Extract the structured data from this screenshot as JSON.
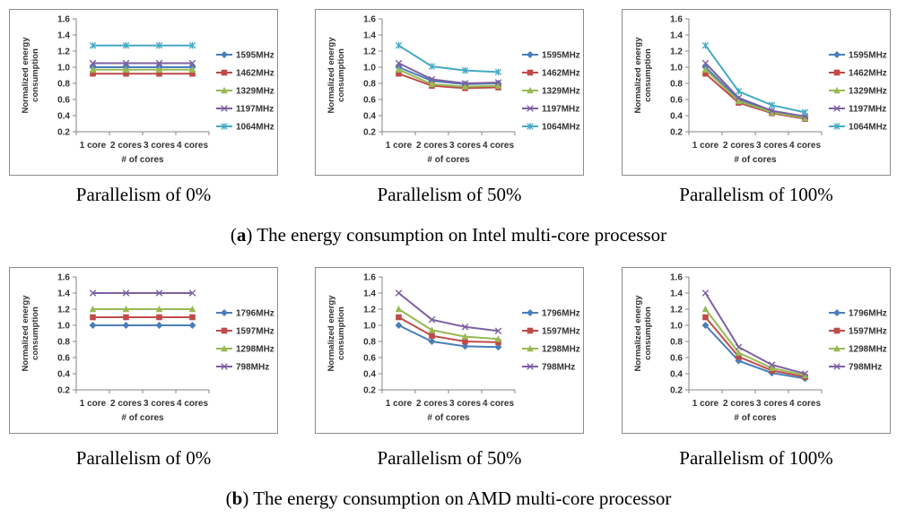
{
  "rows": [
    {
      "label": "a",
      "caption": "The energy consumption on Intel multi-core processor",
      "subcaptions": [
        "Parallelism of 0%",
        "Parallelism of 50%",
        "Parallelism of 100%"
      ]
    },
    {
      "label": "b",
      "caption": "The energy consumption on AMD multi-core processor",
      "subcaptions": [
        "Parallelism of 0%",
        "Parallelism of 50%",
        "Parallelism of 100%"
      ]
    }
  ],
  "chart_data": [
    {
      "type": "line",
      "title": "",
      "xlabel": "# of cores",
      "ylabel": "Normalized energy consumption",
      "categories": [
        "1 core",
        "2 cores",
        "3 cores",
        "4 cores"
      ],
      "ylim": [
        0.2,
        1.6
      ],
      "yticks": [
        "0.2",
        "0.4",
        "0.6",
        "0.8",
        "1.0",
        "1.2",
        "1.4",
        "1.6"
      ],
      "series": [
        {
          "name": "1595MHz",
          "color": "#4a7ebb",
          "marker": "diamond",
          "values": [
            1.0,
            1.0,
            1.0,
            1.0
          ]
        },
        {
          "name": "1462MHz",
          "color": "#be4b48",
          "marker": "square",
          "values": [
            0.92,
            0.92,
            0.92,
            0.92
          ]
        },
        {
          "name": "1329MHz",
          "color": "#98b954",
          "marker": "triangle",
          "values": [
            0.97,
            0.97,
            0.97,
            0.97
          ]
        },
        {
          "name": "1197MHz",
          "color": "#7d60a0",
          "marker": "x",
          "values": [
            1.05,
            1.05,
            1.05,
            1.05
          ]
        },
        {
          "name": "1064MHz",
          "color": "#46aac5",
          "marker": "star",
          "values": [
            1.27,
            1.27,
            1.27,
            1.27
          ]
        }
      ]
    },
    {
      "type": "line",
      "title": "",
      "xlabel": "# of cores",
      "ylabel": "Normalized energy consumption",
      "categories": [
        "1 core",
        "2 cores",
        "3 cores",
        "4 cores"
      ],
      "ylim": [
        0.2,
        1.6
      ],
      "yticks": [
        "0.2",
        "0.4",
        "0.6",
        "0.8",
        "1.0",
        "1.2",
        "1.4",
        "1.6"
      ],
      "series": [
        {
          "name": "1595MHz",
          "color": "#4a7ebb",
          "marker": "diamond",
          "values": [
            1.0,
            0.83,
            0.79,
            0.8
          ]
        },
        {
          "name": "1462MHz",
          "color": "#be4b48",
          "marker": "square",
          "values": [
            0.92,
            0.77,
            0.74,
            0.75
          ]
        },
        {
          "name": "1329MHz",
          "color": "#98b954",
          "marker": "triangle",
          "values": [
            0.97,
            0.79,
            0.76,
            0.77
          ]
        },
        {
          "name": "1197MHz",
          "color": "#7d60a0",
          "marker": "x",
          "values": [
            1.05,
            0.85,
            0.8,
            0.81
          ]
        },
        {
          "name": "1064MHz",
          "color": "#46aac5",
          "marker": "star",
          "values": [
            1.27,
            1.01,
            0.96,
            0.94
          ]
        }
      ]
    },
    {
      "type": "line",
      "title": "",
      "xlabel": "# of cores",
      "ylabel": "Normalized energy consumption",
      "categories": [
        "1 core",
        "2 cores",
        "3 cores",
        "4 cores"
      ],
      "ylim": [
        0.2,
        1.6
      ],
      "yticks": [
        "0.2",
        "0.4",
        "0.6",
        "0.8",
        "1.0",
        "1.2",
        "1.4",
        "1.6"
      ],
      "series": [
        {
          "name": "1595MHz",
          "color": "#4a7ebb",
          "marker": "diamond",
          "values": [
            1.0,
            0.6,
            0.45,
            0.38
          ]
        },
        {
          "name": "1462MHz",
          "color": "#be4b48",
          "marker": "square",
          "values": [
            0.92,
            0.56,
            0.43,
            0.36
          ]
        },
        {
          "name": "1329MHz",
          "color": "#98b954",
          "marker": "triangle",
          "values": [
            0.97,
            0.58,
            0.44,
            0.37
          ]
        },
        {
          "name": "1197MHz",
          "color": "#7d60a0",
          "marker": "x",
          "values": [
            1.05,
            0.62,
            0.46,
            0.39
          ]
        },
        {
          "name": "1064MHz",
          "color": "#46aac5",
          "marker": "star",
          "values": [
            1.27,
            0.7,
            0.53,
            0.44
          ]
        }
      ]
    },
    {
      "type": "line",
      "title": "",
      "xlabel": "# of cores",
      "ylabel": "Normalized energy consumption",
      "categories": [
        "1 core",
        "2 cores",
        "3 cores",
        "4 cores"
      ],
      "ylim": [
        0.2,
        1.6
      ],
      "yticks": [
        "0.2",
        "0.4",
        "0.6",
        "0.8",
        "1.0",
        "1.2",
        "1.4",
        "1.6"
      ],
      "series": [
        {
          "name": "1796MHz",
          "color": "#4a7ebb",
          "marker": "diamond",
          "values": [
            1.0,
            1.0,
            1.0,
            1.0
          ]
        },
        {
          "name": "1597MHz",
          "color": "#be4b48",
          "marker": "square",
          "values": [
            1.1,
            1.1,
            1.1,
            1.1
          ]
        },
        {
          "name": "1298MHz",
          "color": "#98b954",
          "marker": "triangle",
          "values": [
            1.2,
            1.2,
            1.2,
            1.2
          ]
        },
        {
          "name": "798MHz",
          "color": "#7d60a0",
          "marker": "x",
          "values": [
            1.4,
            1.4,
            1.4,
            1.4
          ]
        }
      ]
    },
    {
      "type": "line",
      "title": "",
      "xlabel": "# of cores",
      "ylabel": "Normalized energy consumption",
      "categories": [
        "1 core",
        "2 cores",
        "3 cores",
        "4 cores"
      ],
      "ylim": [
        0.2,
        1.6
      ],
      "yticks": [
        "0.2",
        "0.4",
        "0.6",
        "0.8",
        "1.0",
        "1.2",
        "1.4",
        "1.6"
      ],
      "series": [
        {
          "name": "1796MHz",
          "color": "#4a7ebb",
          "marker": "diamond",
          "values": [
            1.0,
            0.8,
            0.74,
            0.73
          ]
        },
        {
          "name": "1597MHz",
          "color": "#be4b48",
          "marker": "square",
          "values": [
            1.1,
            0.87,
            0.8,
            0.79
          ]
        },
        {
          "name": "1298MHz",
          "color": "#98b954",
          "marker": "triangle",
          "values": [
            1.2,
            0.94,
            0.86,
            0.83
          ]
        },
        {
          "name": "798MHz",
          "color": "#7d60a0",
          "marker": "x",
          "values": [
            1.4,
            1.07,
            0.98,
            0.93
          ]
        }
      ]
    },
    {
      "type": "line",
      "title": "",
      "xlabel": "# of cores",
      "ylabel": "Normalized energy consumption",
      "categories": [
        "1 core",
        "2 cores",
        "3 cores",
        "4 cores"
      ],
      "ylim": [
        0.2,
        1.6
      ],
      "yticks": [
        "0.2",
        "0.4",
        "0.6",
        "0.8",
        "1.0",
        "1.2",
        "1.4",
        "1.6"
      ],
      "series": [
        {
          "name": "1796MHz",
          "color": "#4a7ebb",
          "marker": "diamond",
          "values": [
            1.0,
            0.56,
            0.41,
            0.34
          ]
        },
        {
          "name": "1597MHz",
          "color": "#be4b48",
          "marker": "square",
          "values": [
            1.1,
            0.61,
            0.44,
            0.36
          ]
        },
        {
          "name": "1298MHz",
          "color": "#98b954",
          "marker": "triangle",
          "values": [
            1.2,
            0.66,
            0.47,
            0.38
          ]
        },
        {
          "name": "798MHz",
          "color": "#7d60a0",
          "marker": "x",
          "values": [
            1.4,
            0.73,
            0.51,
            0.4
          ]
        }
      ]
    }
  ]
}
